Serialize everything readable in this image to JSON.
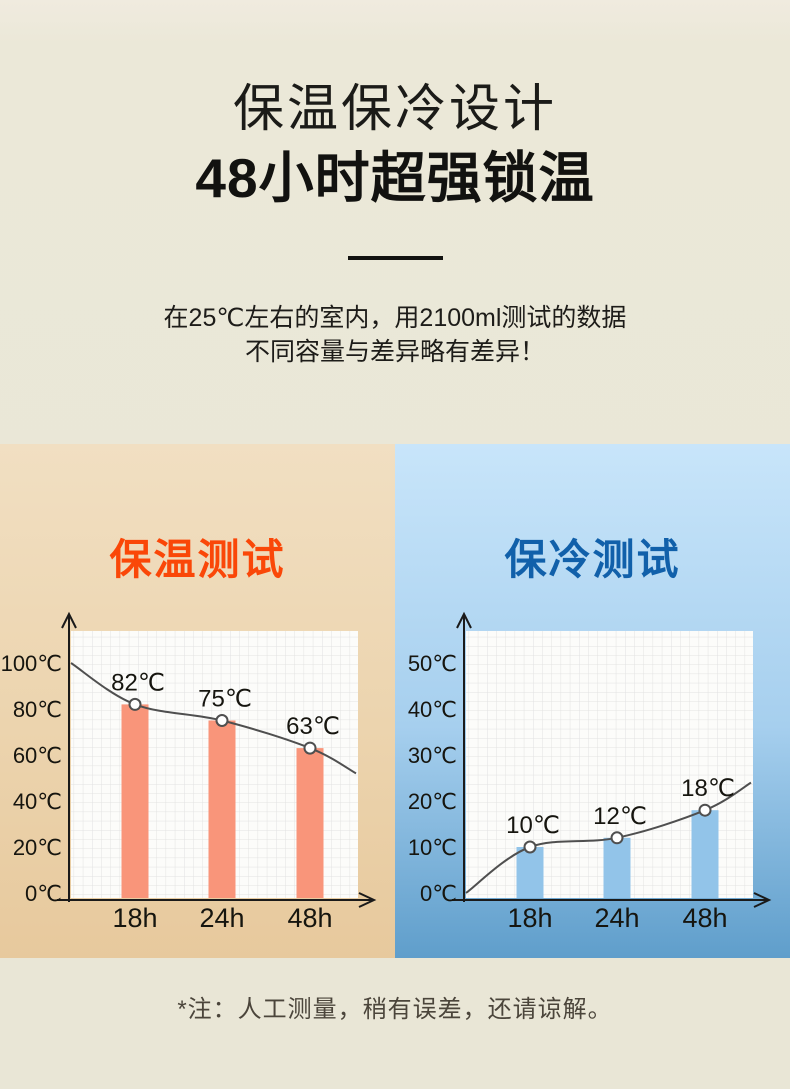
{
  "page": {
    "background_color": "#ebe8d8"
  },
  "header": {
    "title_line1": "保温保冷设计",
    "title_line2": "48小时超强锁温",
    "description_line1": "在25℃左右的室内，用2100ml测试的数据",
    "description_line2": "不同容量与差异略有差异！"
  },
  "footer": {
    "note": "*注：人工测量，稍有误差，还请谅解。"
  },
  "chart_data": [
    {
      "type": "bar",
      "title": "保温测试",
      "title_color": "#fa4708",
      "panel_background": [
        "#f1dfc2",
        "#e7c99d"
      ],
      "bar_color": "#f9957a",
      "categories": [
        "18h",
        "24h",
        "48h"
      ],
      "values": [
        82,
        75,
        63
      ],
      "value_labels": [
        "82℃",
        "75℃",
        "63℃"
      ],
      "yticks": [
        0,
        20,
        40,
        60,
        80,
        100
      ],
      "ytick_labels": [
        "0℃",
        "20℃",
        "40℃",
        "60℃",
        "80℃",
        "100℃"
      ],
      "ylim": [
        0,
        115
      ],
      "grid": true,
      "legend": "none",
      "curve": {
        "start_value": 100,
        "end_value": 52
      },
      "curve_color": "#4f4f4f",
      "xlabel": "",
      "ylabel": ""
    },
    {
      "type": "bar",
      "title": "保冷测试",
      "title_color": "#1160aa",
      "panel_background": [
        "#c8e5fa",
        "#5f9ecb"
      ],
      "bar_color": "#92c4e9",
      "categories": [
        "18h",
        "24h",
        "48h"
      ],
      "values": [
        10,
        12,
        18
      ],
      "value_labels": [
        "10℃",
        "12℃",
        "18℃"
      ],
      "yticks": [
        0,
        10,
        20,
        30,
        40,
        50
      ],
      "ytick_labels": [
        "0℃",
        "10℃",
        "20℃",
        "30℃",
        "40℃",
        "50℃"
      ],
      "ylim": [
        0,
        57
      ],
      "grid": true,
      "legend": "none",
      "curve": {
        "start_value": 0,
        "end_value": 24
      },
      "curve_color": "#4f4f4f",
      "xlabel": "",
      "ylabel": ""
    }
  ]
}
